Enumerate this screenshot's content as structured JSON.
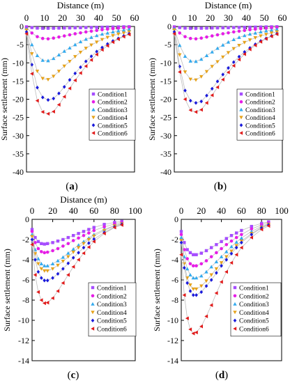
{
  "conditions": [
    "Condition1",
    "Condition2",
    "Condition3",
    "Condition4",
    "Condition5",
    "Condition6"
  ],
  "colors": [
    "#a64dff",
    "#e61ee6",
    "#33aaee",
    "#e6a21a",
    "#1a1adb",
    "#e11a1a"
  ],
  "markers": [
    "square",
    "circle",
    "triangle-up",
    "triangle-down",
    "diamond",
    "triangle-left"
  ],
  "chart_data": [
    {
      "type": "scatter",
      "panel_label": "(a)",
      "xlabel": "Distance (m)",
      "ylabel": "Surface settlement (mm)",
      "xlim": [
        0,
        60
      ],
      "ylim": [
        -40,
        0
      ],
      "xticks": [
        0,
        10,
        20,
        30,
        40,
        50,
        60
      ],
      "yticks": [
        0,
        -5,
        -10,
        -15,
        -20,
        -25,
        -30,
        -35,
        -40
      ],
      "x_axis_position": "top",
      "grid": false,
      "legend": "right",
      "x": [
        0,
        3,
        6,
        9,
        12,
        15,
        18,
        21,
        24,
        27,
        30,
        33,
        36,
        39,
        42,
        45,
        48,
        51,
        54,
        57
      ],
      "series": [
        {
          "name": "Condition1",
          "values": [
            -0.1,
            -0.3,
            -0.45,
            -0.5,
            -0.5,
            -0.48,
            -0.45,
            -0.42,
            -0.4,
            -0.37,
            -0.34,
            -0.3,
            -0.27,
            -0.24,
            -0.21,
            -0.18,
            -0.15,
            -0.12,
            -0.09,
            -0.07
          ]
        },
        {
          "name": "Condition2",
          "values": [
            -0.3,
            -1.8,
            -2.8,
            -3.3,
            -3.4,
            -3.2,
            -2.9,
            -2.6,
            -2.3,
            -2.0,
            -1.75,
            -1.5,
            -1.3,
            -1.1,
            -0.9,
            -0.75,
            -0.6,
            -0.5,
            -0.4,
            -0.3
          ]
        },
        {
          "name": "Condition3",
          "values": [
            -0.5,
            -5.0,
            -8.0,
            -9.3,
            -9.4,
            -8.8,
            -7.8,
            -6.8,
            -5.9,
            -5.0,
            -4.2,
            -3.5,
            -3.0,
            -2.5,
            -2.1,
            -1.8,
            -1.5,
            -1.2,
            -1.0,
            -0.8
          ]
        },
        {
          "name": "Condition4",
          "values": [
            -1.0,
            -7.5,
            -12.3,
            -14.3,
            -14.6,
            -13.7,
            -12.3,
            -10.9,
            -9.6,
            -8.3,
            -7.1,
            -6.0,
            -5.1,
            -4.3,
            -3.6,
            -3.0,
            -2.5,
            -2.1,
            -1.8,
            -1.5
          ]
        },
        {
          "name": "Condition5",
          "values": [
            -1.5,
            -10.5,
            -16.8,
            -19.5,
            -20.2,
            -19.8,
            -18.4,
            -16.6,
            -14.7,
            -12.9,
            -11.2,
            -9.6,
            -8.2,
            -6.9,
            -5.8,
            -4.8,
            -4.0,
            -3.3,
            -2.6,
            -2.0
          ]
        },
        {
          "name": "Condition6",
          "values": [
            -2.0,
            -13.0,
            -20.4,
            -23.5,
            -24.0,
            -23.4,
            -21.5,
            -19.3,
            -17.0,
            -14.8,
            -12.8,
            -10.9,
            -9.2,
            -7.7,
            -6.4,
            -5.3,
            -4.3,
            -3.5,
            -2.8,
            -2.2
          ]
        }
      ]
    },
    {
      "type": "scatter",
      "panel_label": "(b)",
      "xlabel": "Distance (m)",
      "ylabel": "Surface settlement (mm)",
      "xlim": [
        0,
        60
      ],
      "ylim": [
        -40,
        0
      ],
      "xticks": [
        0,
        10,
        20,
        30,
        40,
        50,
        60
      ],
      "yticks": [
        0,
        -5,
        -10,
        -15,
        -20,
        -25,
        -30,
        -35,
        -40
      ],
      "x_axis_position": "top",
      "grid": false,
      "legend": "right",
      "x": [
        0,
        3,
        6,
        9,
        12,
        15,
        18,
        21,
        24,
        27,
        30,
        33,
        36,
        39,
        42,
        45,
        48,
        51,
        54,
        57
      ],
      "series": [
        {
          "name": "Condition1",
          "values": [
            -0.1,
            -0.3,
            -0.45,
            -0.5,
            -0.5,
            -0.48,
            -0.45,
            -0.42,
            -0.4,
            -0.37,
            -0.34,
            -0.3,
            -0.27,
            -0.24,
            -0.21,
            -0.18,
            -0.15,
            -0.12,
            -0.09,
            -0.07
          ]
        },
        {
          "name": "Condition2",
          "values": [
            -0.3,
            -1.8,
            -2.8,
            -3.3,
            -3.4,
            -3.2,
            -2.9,
            -2.6,
            -2.3,
            -2.0,
            -1.75,
            -1.5,
            -1.3,
            -1.1,
            -0.9,
            -0.75,
            -0.6,
            -0.5,
            -0.4,
            -0.3
          ]
        },
        {
          "name": "Condition3",
          "values": [
            -0.5,
            -5.2,
            -8.2,
            -9.5,
            -9.6,
            -9.0,
            -8.0,
            -7.0,
            -6.0,
            -5.1,
            -4.3,
            -3.6,
            -3.0,
            -2.5,
            -2.1,
            -1.8,
            -1.5,
            -1.2,
            -1.0,
            -0.8
          ]
        },
        {
          "name": "Condition4",
          "values": [
            -1.0,
            -7.8,
            -12.5,
            -14.5,
            -14.7,
            -13.8,
            -12.4,
            -11.0,
            -9.7,
            -8.4,
            -7.2,
            -6.1,
            -5.2,
            -4.4,
            -3.7,
            -3.1,
            -2.6,
            -2.2,
            -1.8,
            -1.5
          ]
        },
        {
          "name": "Condition5",
          "values": [
            -1.5,
            -11.0,
            -17.6,
            -20.4,
            -21.0,
            -20.6,
            -19.0,
            -17.1,
            -15.1,
            -13.2,
            -11.4,
            -9.8,
            -8.3,
            -7.0,
            -5.9,
            -4.9,
            -4.0,
            -3.3,
            -2.6,
            -2.0
          ]
        },
        {
          "name": "Condition6",
          "values": [
            -2.0,
            -12.5,
            -20.0,
            -23.0,
            -23.5,
            -22.9,
            -21.0,
            -18.9,
            -16.7,
            -14.6,
            -12.6,
            -10.8,
            -9.1,
            -7.6,
            -6.3,
            -5.2,
            -4.2,
            -3.4,
            -2.7,
            -2.1
          ]
        }
      ]
    },
    {
      "type": "scatter",
      "panel_label": "(c)",
      "xlabel": "Distance (m)",
      "ylabel": "Surface settlement (mm)",
      "xlim": [
        0,
        100
      ],
      "ylim": [
        -14,
        0
      ],
      "xticks": [
        0,
        20,
        40,
        60,
        80,
        100
      ],
      "yticks": [
        0,
        -2,
        -4,
        -6,
        -8,
        -10,
        -12,
        -14
      ],
      "x_axis_position": "top",
      "grid": false,
      "legend": "right",
      "x": [
        0,
        3,
        6,
        9,
        12,
        15,
        20,
        25,
        30,
        35,
        40,
        45,
        50,
        55,
        60,
        70,
        80,
        87
      ],
      "series": [
        {
          "name": "Condition1",
          "values": [
            -1.0,
            -1.8,
            -2.2,
            -2.4,
            -2.45,
            -2.4,
            -2.3,
            -2.15,
            -2.0,
            -1.8,
            -1.6,
            -1.4,
            -1.2,
            -1.0,
            -0.8,
            -0.5,
            -0.3,
            -0.2
          ]
        },
        {
          "name": "Condition2",
          "values": [
            -1.2,
            -2.3,
            -2.9,
            -3.2,
            -3.3,
            -3.25,
            -3.1,
            -2.9,
            -2.65,
            -2.4,
            -2.1,
            -1.85,
            -1.6,
            -1.35,
            -1.1,
            -0.75,
            -0.45,
            -0.3
          ]
        },
        {
          "name": "Condition3",
          "values": [
            -1.5,
            -3.0,
            -3.9,
            -4.4,
            -4.6,
            -4.6,
            -4.4,
            -4.1,
            -3.75,
            -3.35,
            -2.95,
            -2.55,
            -2.2,
            -1.85,
            -1.5,
            -1.0,
            -0.6,
            -0.4
          ]
        },
        {
          "name": "Condition4",
          "values": [
            -1.7,
            -3.4,
            -4.4,
            -4.9,
            -5.1,
            -5.1,
            -4.9,
            -4.55,
            -4.15,
            -3.7,
            -3.25,
            -2.8,
            -2.4,
            -2.0,
            -1.65,
            -1.1,
            -0.65,
            -0.45
          ]
        },
        {
          "name": "Condition5",
          "values": [
            -2.0,
            -4.0,
            -5.2,
            -5.8,
            -6.05,
            -6.05,
            -5.8,
            -5.4,
            -4.9,
            -4.35,
            -3.8,
            -3.3,
            -2.8,
            -2.35,
            -1.95,
            -1.3,
            -0.75,
            -0.5
          ]
        },
        {
          "name": "Condition6",
          "values": [
            -2.5,
            -5.5,
            -7.2,
            -8.0,
            -8.3,
            -8.25,
            -7.8,
            -7.1,
            -6.3,
            -5.5,
            -4.7,
            -4.0,
            -3.35,
            -2.75,
            -2.2,
            -1.4,
            -0.8,
            -0.55
          ]
        }
      ]
    },
    {
      "type": "scatter",
      "panel_label": "(d)",
      "xlabel": "",
      "ylabel": "Surface settlement (mm)",
      "xlim": [
        0,
        100
      ],
      "ylim": [
        -14,
        0
      ],
      "xticks": [
        0,
        20,
        40,
        60,
        80,
        100
      ],
      "yticks": [
        0,
        -2,
        -4,
        -6,
        -8,
        -10,
        -12,
        -14
      ],
      "x_axis_position": "top",
      "grid": false,
      "legend": "right",
      "x": [
        0,
        3,
        6,
        9,
        12,
        15,
        20,
        25,
        30,
        35,
        40,
        45,
        50,
        55,
        60,
        70,
        80,
        87
      ],
      "series": [
        {
          "name": "Condition1",
          "values": [
            -1.2,
            -2.3,
            -3.0,
            -3.3,
            -3.5,
            -3.5,
            -3.35,
            -3.1,
            -2.8,
            -2.5,
            -2.2,
            -1.9,
            -1.6,
            -1.35,
            -1.1,
            -0.7,
            -0.4,
            -0.25
          ]
        },
        {
          "name": "Condition2",
          "values": [
            -1.5,
            -3.0,
            -3.9,
            -4.4,
            -4.6,
            -4.6,
            -4.4,
            -4.1,
            -3.7,
            -3.3,
            -2.9,
            -2.5,
            -2.15,
            -1.8,
            -1.5,
            -0.95,
            -0.55,
            -0.35
          ]
        },
        {
          "name": "Condition3",
          "values": [
            -1.8,
            -3.7,
            -4.9,
            -5.5,
            -5.8,
            -5.8,
            -5.6,
            -5.2,
            -4.7,
            -4.2,
            -3.7,
            -3.2,
            -2.7,
            -2.25,
            -1.85,
            -1.2,
            -0.7,
            -0.45
          ]
        },
        {
          "name": "Condition4",
          "values": [
            -2.1,
            -4.4,
            -5.8,
            -6.5,
            -6.9,
            -6.9,
            -6.6,
            -6.1,
            -5.5,
            -4.9,
            -4.3,
            -3.7,
            -3.15,
            -2.6,
            -2.15,
            -1.4,
            -0.8,
            -0.5
          ]
        },
        {
          "name": "Condition5",
          "values": [
            -2.3,
            -4.8,
            -6.3,
            -7.1,
            -7.5,
            -7.5,
            -7.2,
            -6.6,
            -6.0,
            -5.3,
            -4.6,
            -4.0,
            -3.4,
            -2.8,
            -2.3,
            -1.5,
            -0.85,
            -0.55
          ]
        },
        {
          "name": "Condition6",
          "values": [
            -3.5,
            -7.5,
            -9.8,
            -10.9,
            -11.3,
            -11.2,
            -10.6,
            -9.6,
            -8.5,
            -7.3,
            -6.2,
            -5.2,
            -4.3,
            -3.5,
            -2.8,
            -1.8,
            -1.0,
            -0.65
          ]
        }
      ]
    }
  ]
}
